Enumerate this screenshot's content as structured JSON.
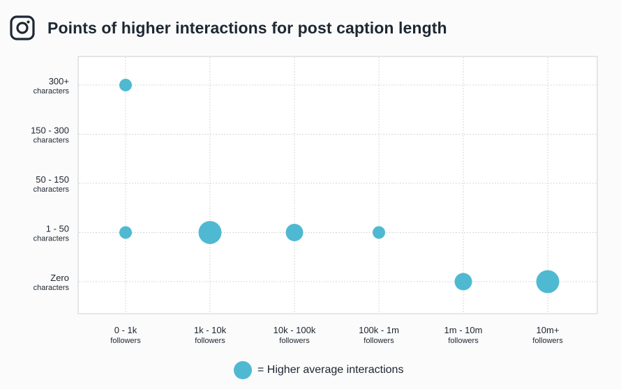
{
  "chart_data": {
    "type": "scatter",
    "title": "Points of higher interactions for post caption length",
    "x_categories": [
      {
        "main": "0 - 1k",
        "sub": "followers"
      },
      {
        "main": "1k - 10k",
        "sub": "followers"
      },
      {
        "main": "10k - 100k",
        "sub": "followers"
      },
      {
        "main": "100k - 1m",
        "sub": "followers"
      },
      {
        "main": "1m - 10m",
        "sub": "followers"
      },
      {
        "main": "10m+",
        "sub": "followers"
      }
    ],
    "y_categories": [
      {
        "main": "Zero",
        "sub": "characters"
      },
      {
        "main": "1 - 50",
        "sub": "characters"
      },
      {
        "main": "50 - 150",
        "sub": "characters"
      },
      {
        "main": "150 - 300",
        "sub": "characters"
      },
      {
        "main": "300+",
        "sub": "characters"
      }
    ],
    "points": [
      {
        "x": 0,
        "y": 4,
        "size": 1
      },
      {
        "x": 0,
        "y": 1,
        "size": 1
      },
      {
        "x": 1,
        "y": 1,
        "size": 3
      },
      {
        "x": 2,
        "y": 1,
        "size": 2
      },
      {
        "x": 3,
        "y": 1,
        "size": 1
      },
      {
        "x": 4,
        "y": 0,
        "size": 2
      },
      {
        "x": 5,
        "y": 0,
        "size": 3
      }
    ],
    "size_meaning": "relative average interactions (1 = small, 3 = large)",
    "grid": true,
    "legend": {
      "label": "= Higher average interactions",
      "placement": "bottom"
    },
    "colors": {
      "bubble": "#4fb9d1",
      "grid": "#d4d7da",
      "frame": "#dcdfe2"
    }
  }
}
